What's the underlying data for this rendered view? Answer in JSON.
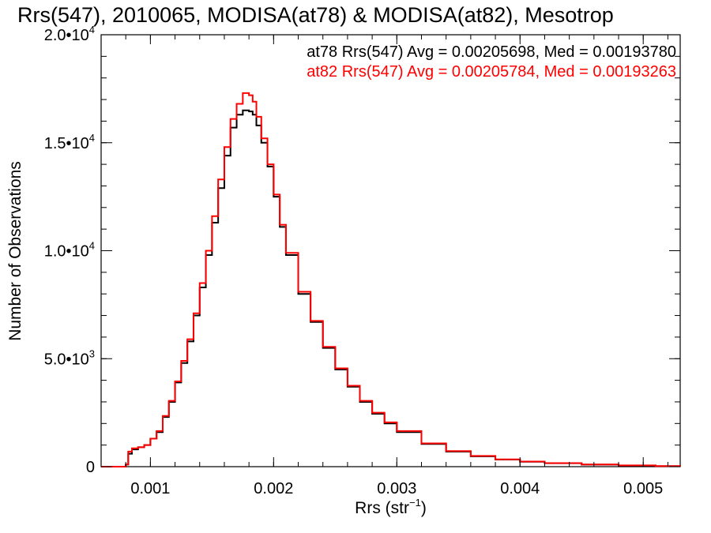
{
  "chart_data": {
    "type": "line",
    "title": "Rrs(547), 2010065, MODISA(at78) & MODISA(at82), Mesotrop",
    "xlabel": {
      "base": "Rrs (str",
      "sup": "−1",
      "close": ")"
    },
    "ylabel": "Number of Observations",
    "xlim": [
      0.0006,
      0.0053
    ],
    "ylim": [
      0,
      20000
    ],
    "x_ticks": [
      {
        "value": 0.001,
        "label": "0.001"
      },
      {
        "value": 0.002,
        "label": "0.002"
      },
      {
        "value": 0.003,
        "label": "0.003"
      },
      {
        "value": 0.004,
        "label": "0.004"
      },
      {
        "value": 0.005,
        "label": "0.005"
      }
    ],
    "y_ticks": [
      {
        "value": 0,
        "base": "0",
        "sup": ""
      },
      {
        "value": 5000,
        "base": "5.0•10",
        "sup": "3"
      },
      {
        "value": 10000,
        "base": "1.0•10",
        "sup": "4"
      },
      {
        "value": 15000,
        "base": "1.5•10",
        "sup": "4"
      },
      {
        "value": 20000,
        "base": "2.0•10",
        "sup": "4"
      }
    ],
    "series": [
      {
        "color": "#000000",
        "stat_label": "at78 Rrs(547) Avg = 0.00205698, Med = 0.00193780",
        "x": [
          0.0006,
          0.00075,
          0.0008,
          0.00082,
          0.00085,
          0.0009,
          0.00095,
          0.001,
          0.00105,
          0.0011,
          0.00115,
          0.0012,
          0.00125,
          0.0013,
          0.00135,
          0.0014,
          0.00145,
          0.0015,
          0.00155,
          0.0016,
          0.00165,
          0.0017,
          0.00175,
          0.0018,
          0.00183,
          0.00186,
          0.0019,
          0.00195,
          0.002,
          0.00205,
          0.0021,
          0.0022,
          0.0023,
          0.0024,
          0.0025,
          0.0026,
          0.0027,
          0.0028,
          0.0029,
          0.003,
          0.0032,
          0.0034,
          0.0036,
          0.0038,
          0.004,
          0.0042,
          0.0045,
          0.0048,
          0.0051,
          0.0053
        ],
        "y": [
          0,
          0,
          100,
          600,
          800,
          900,
          1000,
          1300,
          1600,
          2300,
          3000,
          3900,
          4800,
          5800,
          7000,
          8300,
          9800,
          11300,
          12900,
          14400,
          15700,
          16300,
          16500,
          16450,
          16300,
          15800,
          15000,
          13900,
          12500,
          11100,
          9800,
          8000,
          6700,
          5500,
          4500,
          3700,
          3000,
          2450,
          2000,
          1600,
          1050,
          700,
          480,
          330,
          230,
          160,
          95,
          55,
          25,
          15
        ]
      },
      {
        "color": "#ff0000",
        "stat_label": "at82 Rrs(547) Avg = 0.00205784, Med = 0.00193263",
        "x": [
          0.0006,
          0.00075,
          0.0008,
          0.00082,
          0.00085,
          0.0009,
          0.00095,
          0.001,
          0.00105,
          0.0011,
          0.00115,
          0.0012,
          0.00125,
          0.0013,
          0.00135,
          0.0014,
          0.00145,
          0.0015,
          0.00155,
          0.0016,
          0.00165,
          0.0017,
          0.00175,
          0.0018,
          0.00183,
          0.00186,
          0.0019,
          0.00195,
          0.002,
          0.00205,
          0.0021,
          0.0022,
          0.0023,
          0.0024,
          0.0025,
          0.0026,
          0.0027,
          0.0028,
          0.0029,
          0.003,
          0.0032,
          0.0034,
          0.0036,
          0.0038,
          0.004,
          0.0042,
          0.0045,
          0.0048,
          0.0051,
          0.0053
        ],
        "y": [
          0,
          0,
          100,
          700,
          850,
          900,
          1000,
          1300,
          1650,
          2350,
          3050,
          3950,
          4900,
          5900,
          7100,
          8500,
          10000,
          11600,
          13300,
          14800,
          16100,
          16800,
          17300,
          17200,
          16900,
          16200,
          15200,
          14000,
          12600,
          11200,
          9900,
          8100,
          6750,
          5550,
          4550,
          3750,
          3050,
          2500,
          2050,
          1650,
          1080,
          720,
          500,
          340,
          240,
          165,
          100,
          58,
          28,
          15
        ]
      }
    ]
  }
}
